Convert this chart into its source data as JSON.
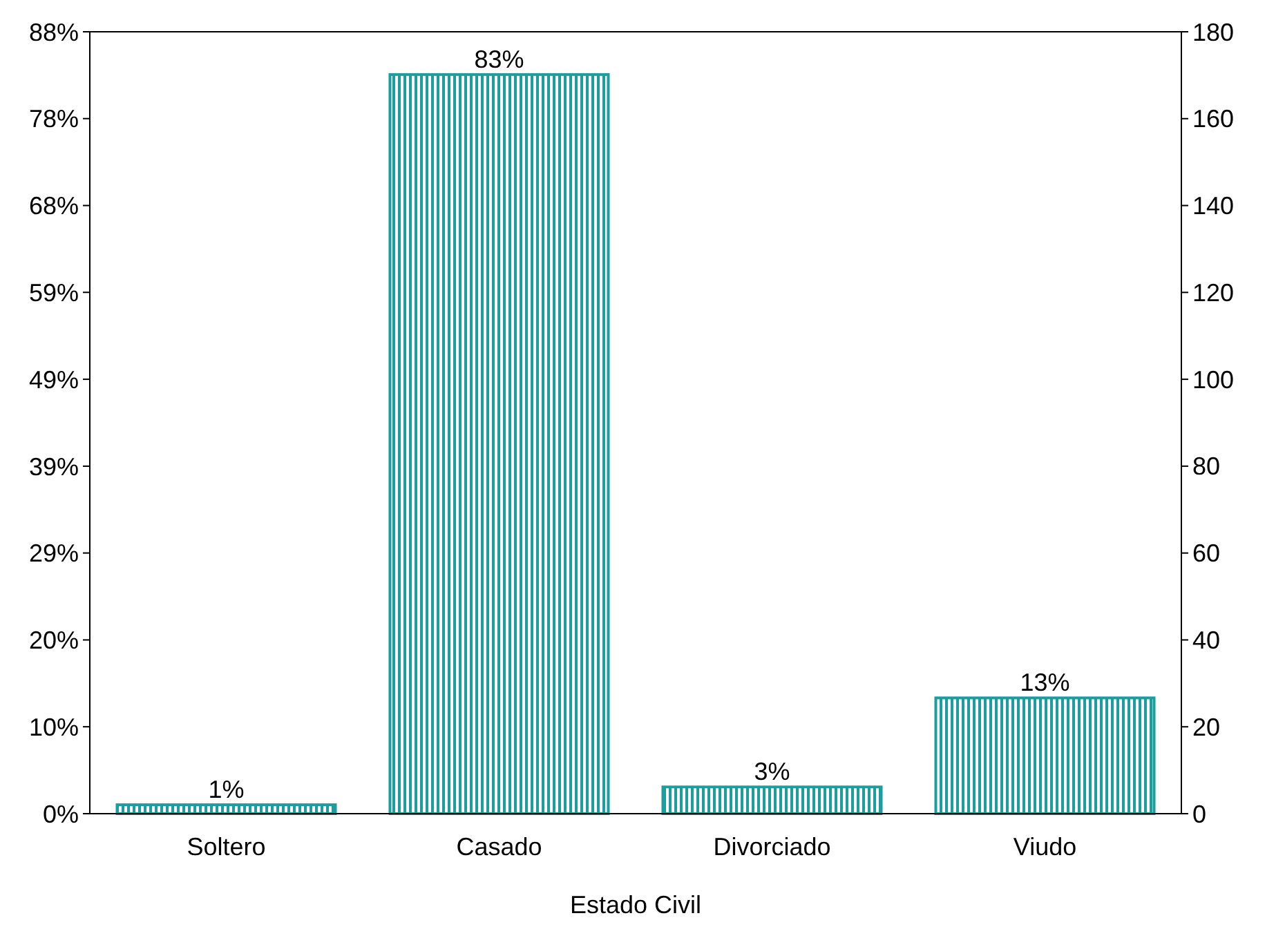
{
  "chart_data": {
    "type": "bar",
    "xlabel": "Estado Civil",
    "categories": [
      "Soltero",
      "Casado",
      "Divorciado",
      "Viudo"
    ],
    "series": [
      {
        "color": "#1a9e9e",
        "values": [
          1,
          83,
          3,
          13
        ],
        "value_labels": [
          "1%",
          "83%",
          "3%",
          "13%"
        ]
      }
    ],
    "ylim": [
      0,
      87.8
    ],
    "yticks": [
      {
        "value": 0,
        "label": "0%"
      },
      {
        "value": 9.76,
        "label": "10%"
      },
      {
        "value": 19.51,
        "label": "20%"
      },
      {
        "value": 29.27,
        "label": "29%"
      },
      {
        "value": 39.02,
        "label": "39%"
      },
      {
        "value": 48.78,
        "label": "49%"
      },
      {
        "value": 58.54,
        "label": "59%"
      },
      {
        "value": 68.29,
        "label": "68%"
      },
      {
        "value": 78.05,
        "label": "78%"
      },
      {
        "value": 87.8,
        "label": "88%"
      }
    ],
    "y2lim": [
      0,
      180
    ],
    "y2ticks": [
      0,
      20,
      40,
      60,
      80,
      100,
      120,
      140,
      160,
      180
    ],
    "grid": false
  }
}
